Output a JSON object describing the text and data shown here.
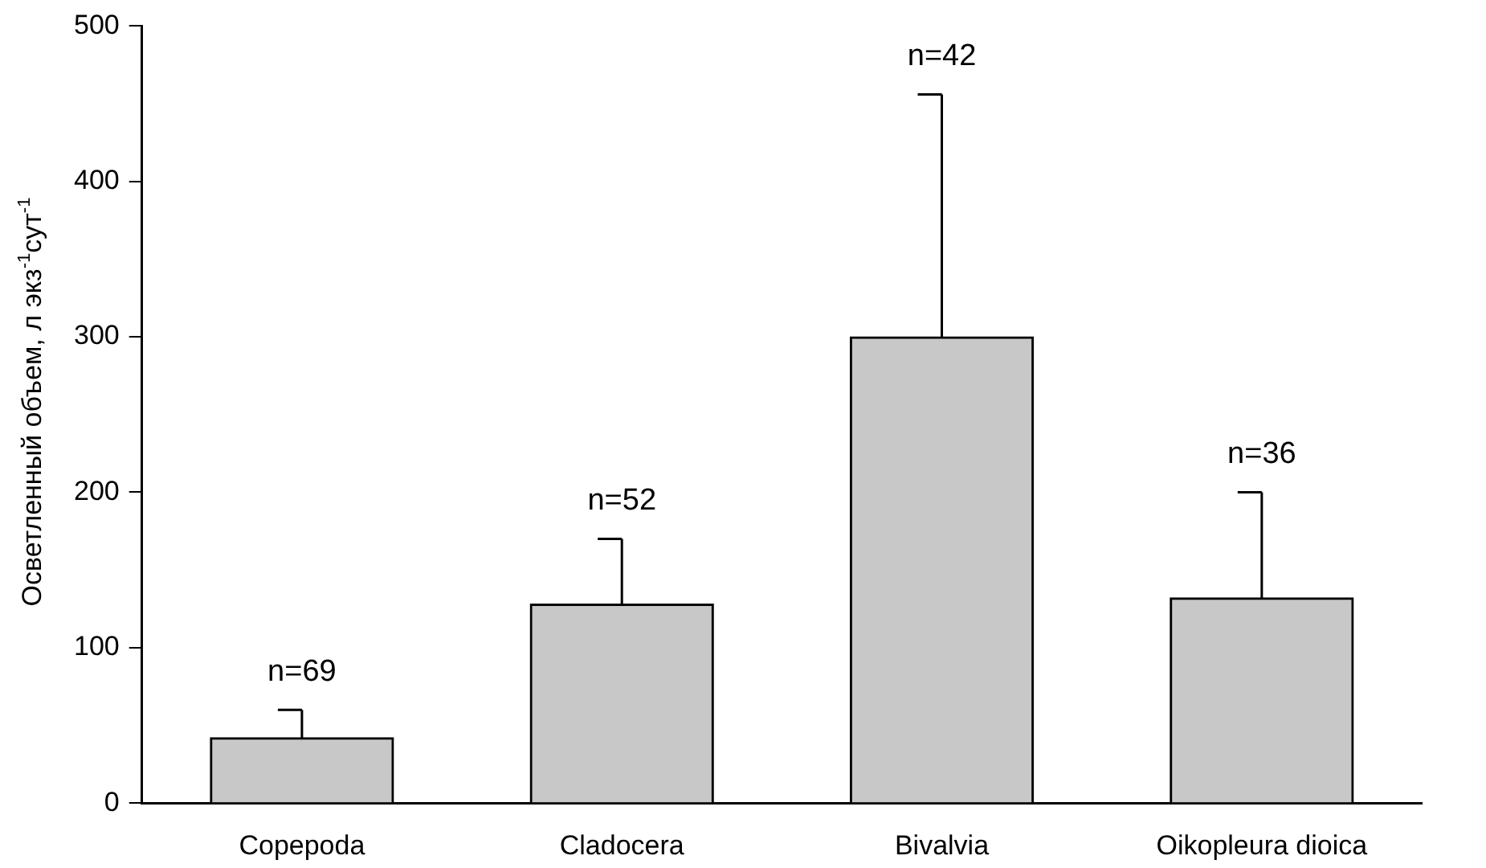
{
  "chart_data": {
    "type": "bar",
    "ylabel": "Осветленный объем, л экз$^{-1}$сут$^{-1}$",
    "categories": [
      "Copepoda",
      "Cladocera",
      "Bivalvia",
      "Oikopleura dioica"
    ],
    "values": [
      42,
      128,
      300,
      132
    ],
    "errors": [
      [
        42,
        60
      ],
      [
        128,
        170
      ],
      [
        300,
        456
      ],
      [
        132,
        200
      ]
    ],
    "color": "#c8c8c8",
    "ylim": [
      0,
      500
    ],
    "yticks": [
      0,
      100,
      200,
      300,
      400,
      500
    ],
    "grid": false,
    "legend": false,
    "annotations": [
      "n=69",
      "n=52",
      "n=42",
      "n=36"
    ]
  }
}
